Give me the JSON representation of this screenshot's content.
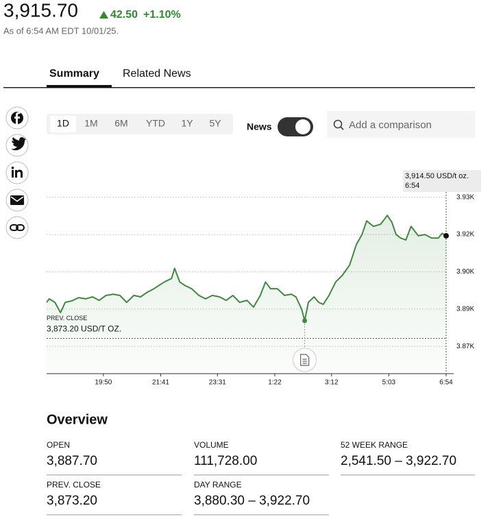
{
  "header": {
    "price": "3,915.70",
    "change": "42.50",
    "change_pct": "+1.10%",
    "as_of": "As of 6:54 AM EDT 10/01/25."
  },
  "tabs": [
    "Summary",
    "Related News"
  ],
  "ranges": [
    "1D",
    "1M",
    "6M",
    "YTD",
    "1Y",
    "5Y"
  ],
  "news_toggle": "News",
  "search_placeholder": "Add a comparison",
  "chart_data": {
    "type": "line",
    "color": "#3d8b3d",
    "grid": true,
    "x": [
      0,
      5,
      16,
      27,
      36,
      49,
      62,
      76,
      89,
      102,
      115,
      129,
      142,
      155,
      169,
      182,
      195,
      208,
      228,
      242,
      248,
      258,
      268,
      281,
      295,
      308,
      321,
      335,
      348,
      361,
      374,
      388,
      401,
      414,
      424,
      434,
      447,
      461,
      474,
      483,
      494,
      500,
      507,
      518,
      527,
      536,
      547,
      560,
      573,
      587,
      600,
      611,
      620,
      633,
      647,
      660,
      669,
      677,
      686,
      696,
      706,
      720,
      733,
      746,
      759,
      766,
      774
    ],
    "values": [
      3887.7,
      3889.1,
      3887.7,
      3883.6,
      3887.7,
      3888.3,
      3889.6,
      3889.1,
      3889.9,
      3888.5,
      3890.5,
      3891.0,
      3890.5,
      3887.7,
      3890.5,
      3889.9,
      3891.8,
      3893.2,
      3895.9,
      3897.3,
      3901.4,
      3895.9,
      3894.5,
      3893.2,
      3890.5,
      3889.1,
      3890.5,
      3889.9,
      3888.5,
      3890.5,
      3887.7,
      3888.5,
      3885.8,
      3890.5,
      3895.9,
      3893.2,
      3893.2,
      3890.5,
      3891.0,
      3889.9,
      3885.0,
      3880.3,
      3887.7,
      3889.9,
      3887.7,
      3886.9,
      3890.5,
      3895.9,
      3898.6,
      3902.7,
      3910.9,
      3915.0,
      3920.5,
      3918.3,
      3919.1,
      3922.7,
      3919.9,
      3915.0,
      3913.6,
      3912.8,
      3918.3,
      3914.5,
      3915.0,
      3913.6,
      3913.6,
      3915.5,
      3914.5
    ],
    "xlim": [
      0,
      774
    ],
    "xticks": [
      {
        "value": 110,
        "label": "19:50"
      },
      {
        "value": 221,
        "label": "21:41"
      },
      {
        "value": 331,
        "label": "23:31"
      },
      {
        "value": 442,
        "label": "1:22"
      },
      {
        "value": 552,
        "label": "3:12"
      },
      {
        "value": 663,
        "label": "5:03"
      },
      {
        "value": 774,
        "label": "6:54"
      }
    ],
    "ylim": [
      3859,
      3936
    ],
    "yticks": [
      {
        "value": 3870,
        "label": "3.87K"
      },
      {
        "value": 3885,
        "label": "3.89K"
      },
      {
        "value": 3900,
        "label": "3.90K"
      },
      {
        "value": 3915,
        "label": "3.92K"
      },
      {
        "value": 3930,
        "label": "3.93K"
      }
    ],
    "prev_close": {
      "label": "PREV. CLOSE",
      "value": 3873.2,
      "value_label": "3,873.20 USD/T OZ."
    },
    "tooltip": {
      "value_label": "3,914.50 USD/t oz.",
      "time": "6:54"
    }
  },
  "overview": {
    "title": "Overview",
    "items": [
      {
        "label": "OPEN",
        "value": "3,887.70"
      },
      {
        "label": "VOLUME",
        "value": "111,728.00"
      },
      {
        "label": "52 WEEK RANGE",
        "value": "2,541.50 – 3,922.70"
      },
      {
        "label": "PREV. CLOSE",
        "value": "3,873.20"
      },
      {
        "label": "DAY RANGE",
        "value": "3,880.30 – 3,922.70"
      }
    ]
  }
}
